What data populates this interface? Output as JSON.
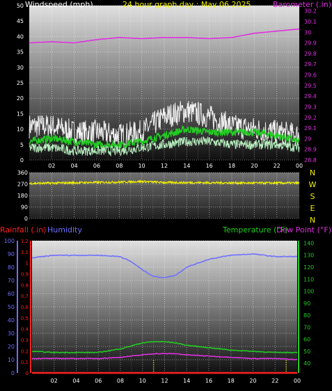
{
  "colors": {
    "background": "#000000",
    "windspeed": "#f0f0f0",
    "wind_green": "#22cc22",
    "wind_light": "#b8f0c0",
    "barometer": "#e030e0",
    "direction": "#f0f000",
    "humidity": "#7070ff",
    "rainfall": "#ff2020",
    "temperature": "#22cc22",
    "dewpoint": "#e030e0",
    "title": "#f0f000"
  },
  "chart_data": [
    {
      "id": "wind-baro",
      "type": "line",
      "title": "24 hour graph day : May 06 2025",
      "left_axis_label": "Windspeed (mph)",
      "right_axis_label": "Barometer (.in)",
      "x_ticks": [
        "02",
        "04",
        "06",
        "08",
        "10",
        "12",
        "14",
        "16",
        "18",
        "20",
        "22",
        "00"
      ],
      "y_left_ticks": [
        "0",
        "5",
        "10",
        "15",
        "20",
        "25",
        "30",
        "35",
        "40",
        "45",
        "50"
      ],
      "y_left_range": [
        0,
        50
      ],
      "y_right_ticks": [
        "28.8",
        "28.9",
        "29",
        "29.1",
        "29.2",
        "29.3",
        "29.4",
        "29.5",
        "29.6",
        "29.7",
        "29.8",
        "29.9",
        "30",
        "30.1",
        "30.2"
      ],
      "y_right_range": [
        28.8,
        30.25
      ],
      "x_range_hours": [
        0,
        24
      ],
      "grid": true,
      "series": [
        {
          "axis": "right",
          "color_key": "barometer",
          "hours": [
            0,
            2,
            4,
            6,
            8,
            10,
            12,
            14,
            16,
            18,
            20,
            22,
            24
          ],
          "values": [
            29.9,
            29.91,
            29.9,
            29.93,
            29.95,
            29.94,
            29.95,
            29.95,
            29.94,
            29.95,
            29.99,
            30.01,
            30.03
          ]
        },
        {
          "axis": "left",
          "color_key": "windspeed",
          "hours": [
            0,
            2,
            4,
            6,
            8,
            10,
            12,
            13,
            14,
            16,
            18,
            20,
            22,
            24
          ],
          "values": [
            11,
            11,
            9,
            9,
            8,
            9,
            14,
            15,
            16,
            14,
            11,
            10,
            9,
            8
          ]
        },
        {
          "axis": "left",
          "color_key": "wind_green",
          "hours": [
            0,
            2,
            4,
            6,
            8,
            10,
            12,
            14,
            16,
            18,
            20,
            22,
            24
          ],
          "values": [
            6,
            7,
            6,
            5,
            5,
            6,
            8,
            10,
            9,
            9,
            9,
            8,
            6
          ]
        },
        {
          "axis": "left",
          "color_key": "wind_light",
          "hours": [
            0,
            2,
            4,
            6,
            8,
            10,
            12,
            14,
            16,
            18,
            20,
            22,
            24
          ],
          "values": [
            4,
            4,
            3,
            3,
            3,
            4,
            5,
            6,
            6,
            5,
            5,
            5,
            4
          ]
        }
      ]
    },
    {
      "id": "direction",
      "type": "line",
      "y_left_ticks": [
        "360",
        "270",
        "180",
        "90",
        "0"
      ],
      "y_left_range": [
        0,
        360
      ],
      "compass_labels": [
        "N",
        "W",
        "S",
        "E",
        "N"
      ],
      "x_range_hours": [
        0,
        24
      ],
      "grid": true,
      "series": [
        {
          "axis": "left",
          "color_key": "direction",
          "hours": [
            0,
            4,
            8,
            10,
            12,
            16,
            20,
            24
          ],
          "values": [
            275,
            280,
            285,
            290,
            282,
            280,
            278,
            278
          ]
        }
      ]
    },
    {
      "id": "rain-hum-temp",
      "type": "line",
      "rainfall_label": "Rainfall (.in)",
      "humidity_label": "Humidity",
      "temperature_label": "Temperature (°F)",
      "dewpoint_label": "Dew Point (°F)",
      "x_ticks": [
        "02",
        "04",
        "06",
        "08",
        "10",
        "12",
        "14",
        "16",
        "18",
        "20",
        "22",
        "00"
      ],
      "y_humidity_ticks": [
        "0",
        "10",
        "20",
        "30",
        "40",
        "50",
        "60",
        "70",
        "80",
        "90",
        "100"
      ],
      "y_humidity_range": [
        0,
        100
      ],
      "y_rain_ticks": [
        "0",
        "0.1",
        "0.2",
        "0.3",
        "0.4",
        "0.5",
        "0.6",
        "0.7",
        "0.8",
        "0.9",
        "1",
        "1.1",
        "1.2"
      ],
      "y_rain_range": [
        0,
        1.2
      ],
      "y_temp_ticks": [
        "40",
        "50",
        "60",
        "70",
        "80",
        "90",
        "100",
        "110",
        "120",
        "130",
        "140"
      ],
      "y_temp_range": [
        32,
        142
      ],
      "x_range_hours": [
        0,
        24
      ],
      "grid": true,
      "series": [
        {
          "axis": "humidity",
          "color_key": "humidity",
          "hours": [
            0,
            2,
            4,
            6,
            8,
            9,
            10,
            11,
            12,
            13,
            14,
            16,
            18,
            20,
            22,
            24
          ],
          "values": [
            87,
            89,
            89,
            89,
            88,
            84,
            78,
            73,
            72,
            74,
            80,
            86,
            89,
            90,
            88,
            88
          ]
        },
        {
          "axis": "temp",
          "color_key": "temperature",
          "hours": [
            0,
            2,
            4,
            6,
            8,
            10,
            11,
            12,
            13,
            14,
            16,
            18,
            20,
            22,
            24
          ],
          "values": [
            50,
            49,
            49,
            49,
            52,
            57,
            58,
            58,
            57,
            55,
            53,
            51,
            50,
            49,
            49
          ]
        },
        {
          "axis": "temp",
          "color_key": "dewpoint",
          "hours": [
            0,
            2,
            4,
            6,
            8,
            10,
            11,
            12,
            13,
            14,
            16,
            18,
            20,
            22,
            24
          ],
          "values": [
            44,
            44,
            44,
            44,
            45,
            47,
            48,
            48,
            48,
            47,
            46,
            45,
            44,
            44,
            43
          ]
        },
        {
          "axis": "rain",
          "color_key": "rainfall",
          "hours": [
            0,
            24
          ],
          "values": [
            0,
            0
          ]
        }
      ]
    }
  ]
}
